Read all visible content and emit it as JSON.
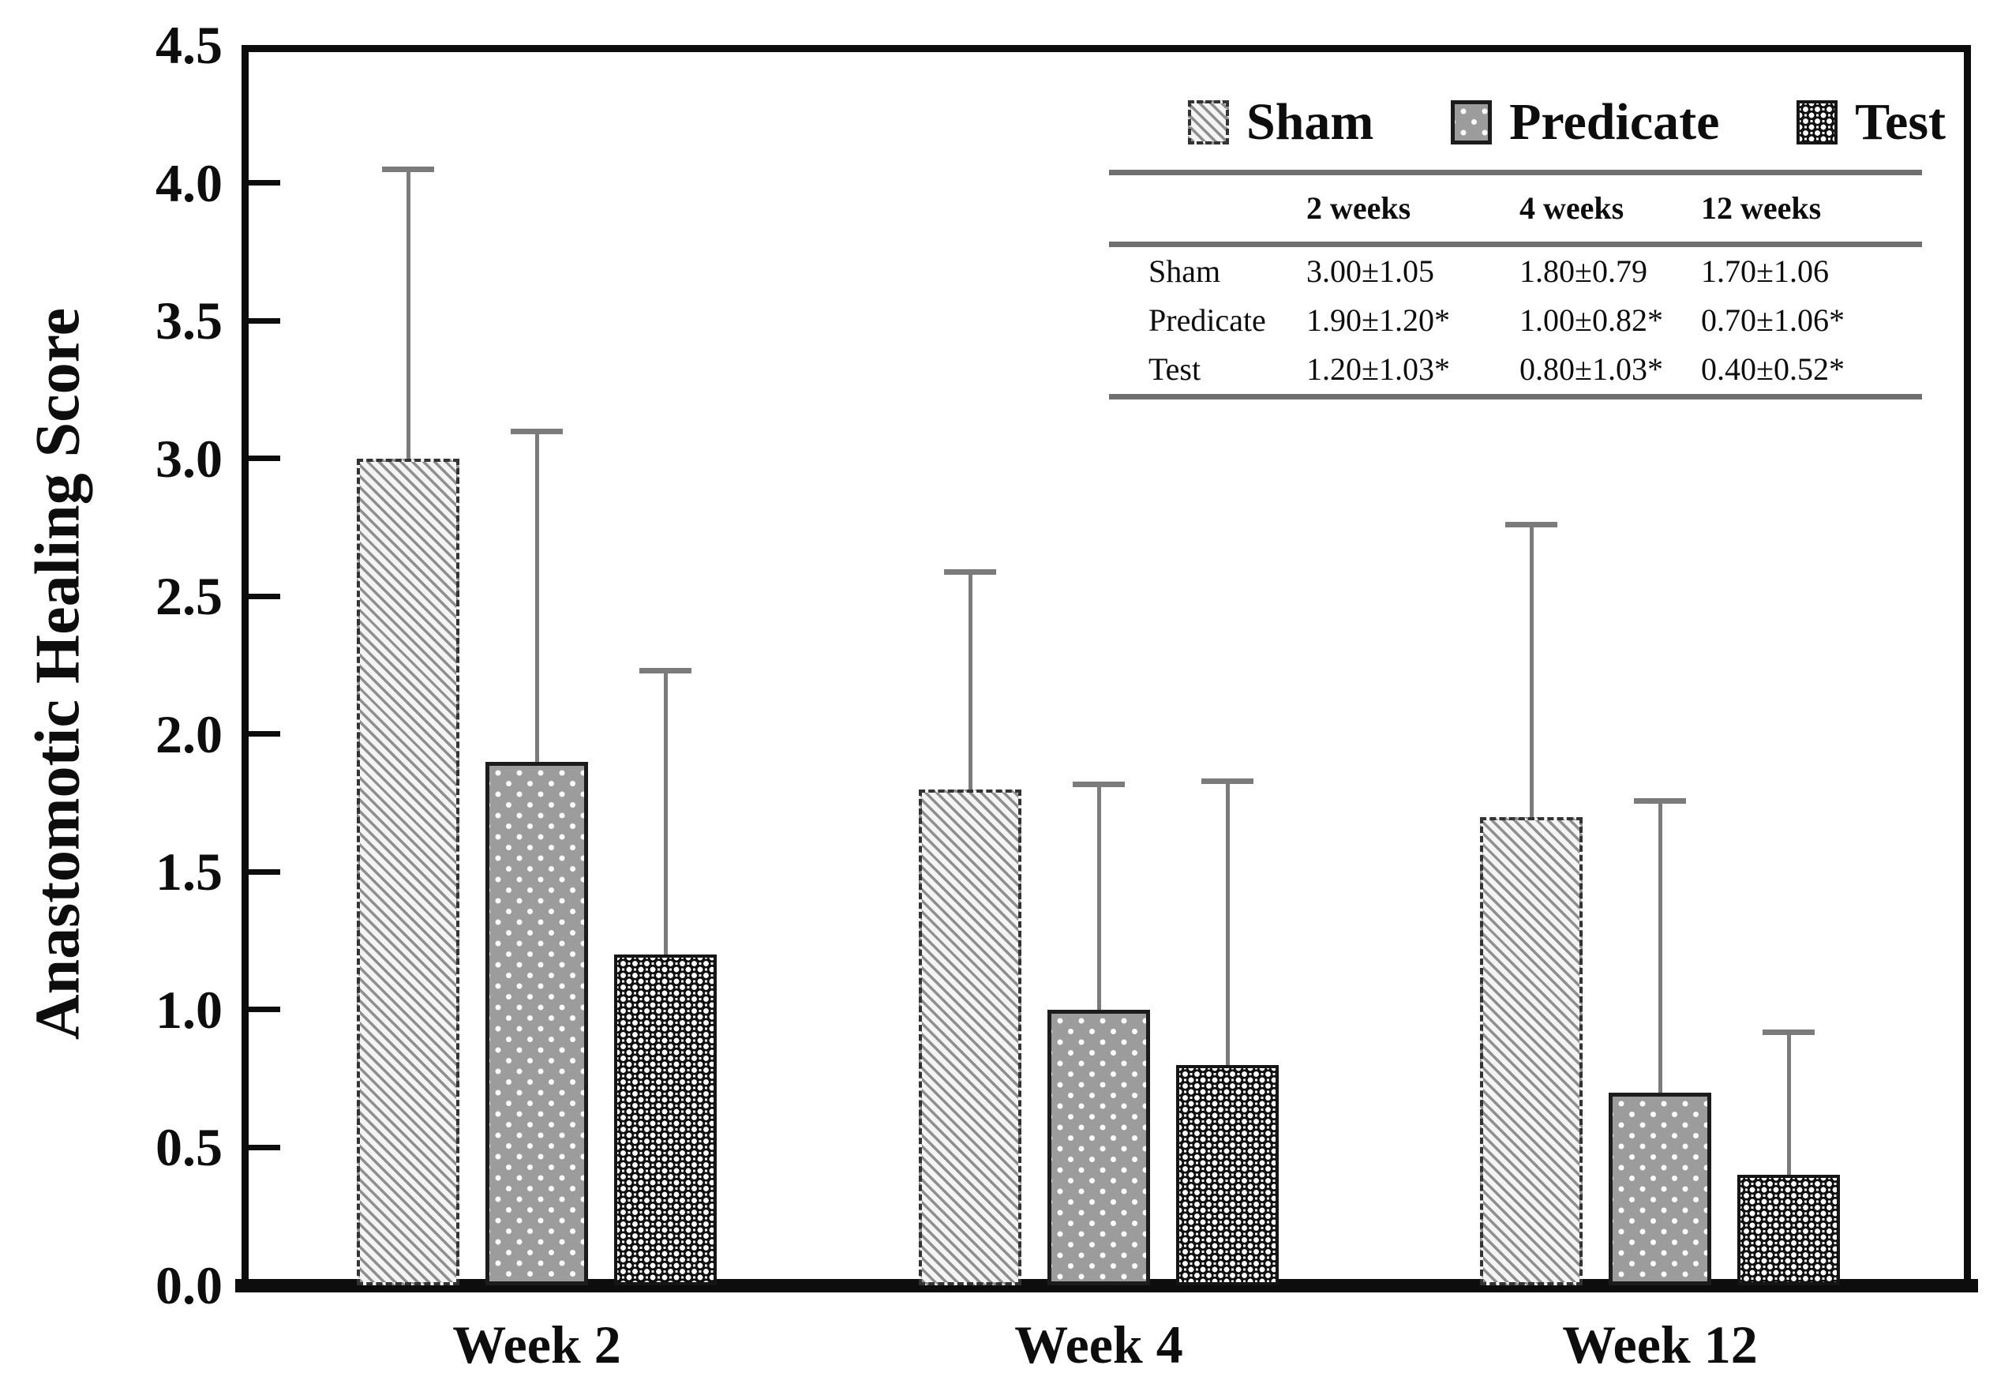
{
  "colors": {
    "ink": "#0d0d0d",
    "error_bar_gray": "#7b7b7b",
    "predicate_bar_gray": "#9c9c9c",
    "table_rule_gray": "#6f6f6f",
    "background": "#ffffff"
  },
  "y_axis": {
    "title": "Anastomotic Healing Score",
    "tick_labels": [
      "0.0",
      "0.5",
      "1.0",
      "1.5",
      "2.0",
      "2.5",
      "3.0",
      "3.5",
      "4.0",
      "4.5"
    ],
    "min": 0,
    "max": 4.5,
    "tick_step": 0.5
  },
  "x_axis": {
    "tick_labels": [
      "Week 2",
      "Week 4",
      "Week 12"
    ]
  },
  "legend": {
    "items": [
      {
        "label": "Sham",
        "pattern": "diagonal-hatch"
      },
      {
        "label": "Predicate",
        "pattern": "gray-dot"
      },
      {
        "label": "Test",
        "pattern": "ring"
      }
    ]
  },
  "chart_data": {
    "type": "bar",
    "title": "",
    "xlabel": "",
    "ylabel": "Anastomotic Healing Score",
    "ylim": [
      0,
      4.5
    ],
    "grid": false,
    "legend_position": "upper right",
    "error_bars": "upper standard deviation with caps",
    "categories": [
      "Week 2",
      "Week 4",
      "Week 12"
    ],
    "series": [
      {
        "name": "Sham",
        "pattern": "diagonal-hatch",
        "values": [
          3.0,
          1.8,
          1.7
        ],
        "sd": [
          1.05,
          0.79,
          1.06
        ]
      },
      {
        "name": "Predicate",
        "pattern": "gray-dot",
        "values": [
          1.9,
          1.0,
          0.7
        ],
        "sd": [
          1.2,
          0.82,
          1.06
        ]
      },
      {
        "name": "Test",
        "pattern": "ring",
        "values": [
          1.2,
          0.8,
          0.4
        ],
        "sd": [
          1.03,
          1.03,
          0.52
        ]
      }
    ]
  },
  "inset_table": {
    "columns": [
      "2 weeks",
      "4 weeks",
      "12 weeks"
    ],
    "rows": [
      {
        "label": "Sham",
        "values": [
          "3.00±1.05",
          "1.80±0.79",
          "1.70±1.06"
        ]
      },
      {
        "label": "Predicate",
        "values": [
          "1.90±1.20*",
          "1.00±0.82*",
          "0.70±1.06*"
        ]
      },
      {
        "label": "Test",
        "values": [
          "1.20±1.03*",
          "0.80±1.03*",
          "0.40±0.52*"
        ]
      }
    ]
  }
}
